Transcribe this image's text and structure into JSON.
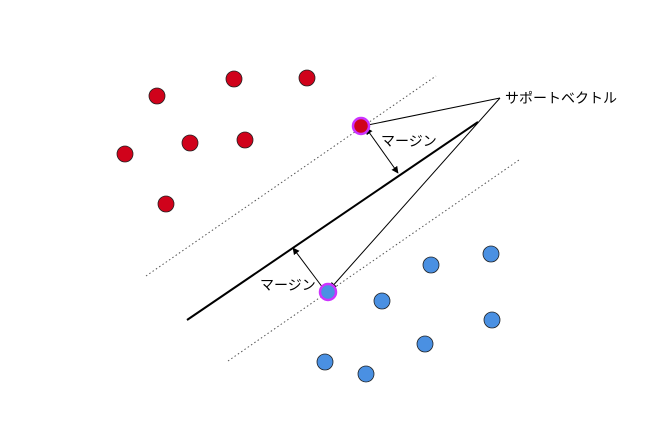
{
  "labels": {
    "support_vector": "サポートベクトル",
    "margin_upper": "マージン",
    "margin_lower": "マージン"
  },
  "colors": {
    "class_red": "#d0021b",
    "class_blue": "#4a90e2",
    "support_vector_ring": "#cc33ff",
    "line": "#000000"
  },
  "class_red_count": 7,
  "class_blue_count": 8
}
